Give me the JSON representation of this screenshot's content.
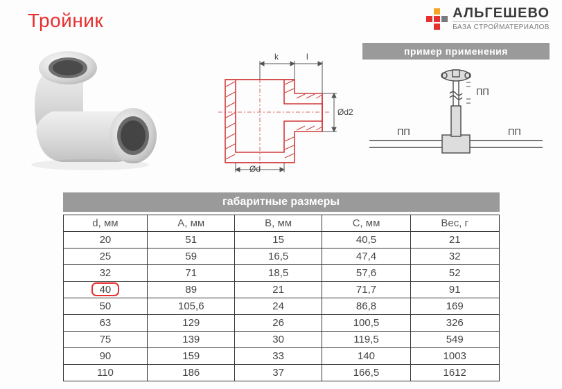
{
  "title": "Тройник",
  "brand": {
    "name": "АЛЬГЕШЕВО",
    "subtitle": "БАЗА СТРОЙМАТЕРИАЛОВ",
    "logo_colors": {
      "accent1": "#f5a623",
      "accent2": "#e53030",
      "gray": "#7a7a7a"
    }
  },
  "banners": {
    "example": "пример применения",
    "sizes": "габаритные размеры"
  },
  "tech_drawing": {
    "labels": {
      "k": "k",
      "l": "l",
      "d": "Ød",
      "d2": "Ød2"
    },
    "stroke_color": "#d13a3a",
    "dim_color": "#555555"
  },
  "example_drawing": {
    "label_pp": "ПП",
    "stroke_color": "#4a4a4a"
  },
  "product_render": {
    "light": "#f2f2f2",
    "mid": "#d8d8d8",
    "dark": "#b8b8b8",
    "hole": "#6f6f6f"
  },
  "table": {
    "columns": [
      "d, мм",
      "A, мм",
      "B, мм",
      "C, мм",
      "Вес, г"
    ],
    "rows": [
      [
        "20",
        "51",
        "15",
        "40,5",
        "21"
      ],
      [
        "25",
        "59",
        "16,5",
        "47,4",
        "32"
      ],
      [
        "32",
        "71",
        "18,5",
        "57,6",
        "52"
      ],
      [
        "40",
        "89",
        "21",
        "71,7",
        "91"
      ],
      [
        "50",
        "105,6",
        "24",
        "86,8",
        "169"
      ],
      [
        "63",
        "129",
        "26",
        "100,5",
        "326"
      ],
      [
        "75",
        "139",
        "30",
        "119,5",
        "549"
      ],
      [
        "90",
        "159",
        "33",
        "140",
        "1003"
      ],
      [
        "110",
        "186",
        "37",
        "166,5",
        "1612"
      ]
    ],
    "highlight_row_index": 3,
    "highlight_col_index": 0,
    "border_color": "#333333",
    "text_color": "#444444",
    "highlight_color": "#e53030"
  },
  "colors": {
    "title": "#e53030",
    "banner_bg": "#9a9a9a",
    "banner_text": "#ffffff",
    "background": "#fdfdfd"
  }
}
